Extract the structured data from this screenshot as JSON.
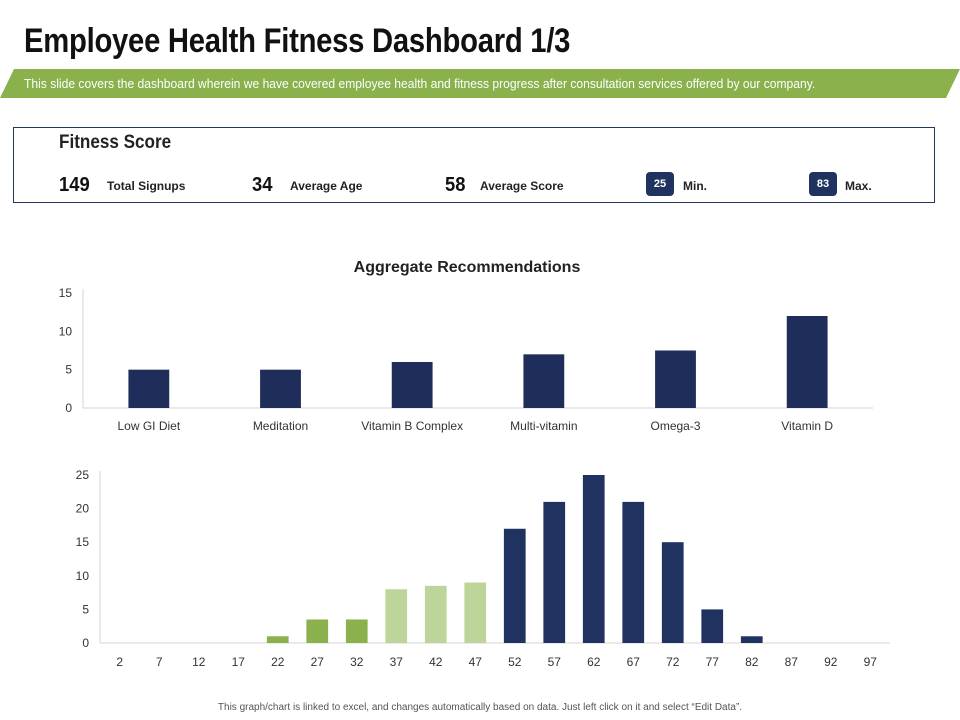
{
  "header": {
    "title": "Employee Health Fitness Dashboard 1/3",
    "subtitle": "This slide covers the dashboard wherein we have covered employee health and fitness progress after consultation services offered by our company."
  },
  "fitness_score": {
    "title": "Fitness Score",
    "total_signups": {
      "value": "149",
      "label": "Total Signups"
    },
    "average_age": {
      "value": "34",
      "label": "Average Age"
    },
    "average_score": {
      "value": "58",
      "label": "Average Score"
    },
    "min": {
      "value": "25",
      "label": "Min."
    },
    "max": {
      "value": "83",
      "label": "Max."
    }
  },
  "colors": {
    "navy": "#1f3260",
    "bar_navy": "#1e2d5a",
    "green": "#8ab14b",
    "light_green": "#bdd59a",
    "axis": "#d4d4d4"
  },
  "chart_data": [
    {
      "type": "bar",
      "title": "Aggregate Recommendations",
      "categories": [
        "Low GI Diet",
        "Meditation",
        "Vitamin B Complex",
        "Multi-vitamin",
        "Omega-3",
        "Vitamin D"
      ],
      "values": [
        5,
        5,
        6,
        7,
        7.5,
        12
      ],
      "ylim": [
        0,
        15
      ],
      "yticks": [
        0,
        5,
        10,
        15
      ],
      "xlabel": "",
      "ylabel": ""
    },
    {
      "type": "bar",
      "title": "",
      "categories": [
        "2",
        "7",
        "12",
        "17",
        "22",
        "27",
        "32",
        "37",
        "42",
        "47",
        "52",
        "57",
        "62",
        "67",
        "72",
        "77",
        "82",
        "87",
        "92",
        "97"
      ],
      "values": [
        0,
        0,
        0,
        0,
        1,
        3.5,
        3.5,
        8,
        8.5,
        9,
        17,
        21,
        25,
        21,
        15,
        5,
        1,
        0,
        0,
        0
      ],
      "bar_colors": [
        "green",
        "green",
        "green",
        "green",
        "green",
        "green",
        "green",
        "light_green",
        "light_green",
        "light_green",
        "navy",
        "navy",
        "navy",
        "navy",
        "navy",
        "navy",
        "navy",
        "navy",
        "navy",
        "navy"
      ],
      "ylim": [
        0,
        25
      ],
      "yticks": [
        0,
        5,
        10,
        15,
        20,
        25
      ],
      "xlabel": "",
      "ylabel": ""
    }
  ],
  "footer": {
    "note": "This graph/chart is linked to excel, and changes automatically based on data. Just left click on it and select “Edit Data”."
  }
}
